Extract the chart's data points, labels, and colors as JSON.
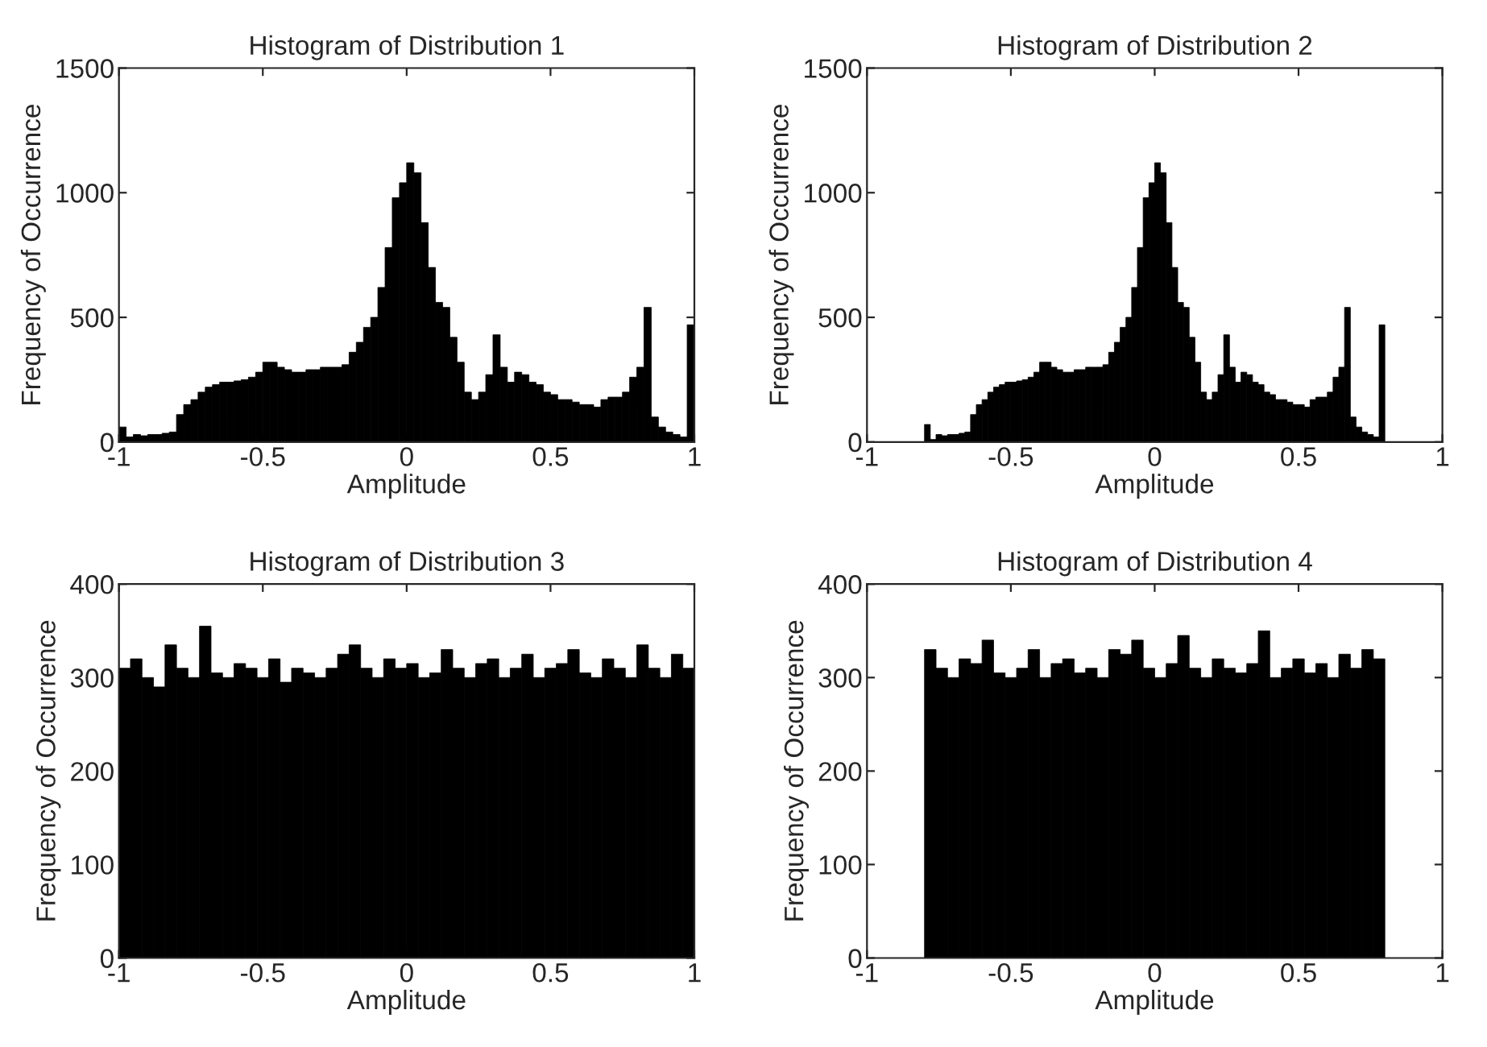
{
  "chart_data": [
    {
      "type": "histogram",
      "title": "Histogram of Distribution 1",
      "xlabel": "Amplitude",
      "ylabel": "Frequency of Occurrence",
      "color": "#000000",
      "xlim": [
        -1,
        1
      ],
      "xticks": [
        -1,
        -0.5,
        0,
        0.5,
        1
      ],
      "ylim": [
        0,
        1500
      ],
      "yticks": [
        0,
        500,
        1000,
        1500
      ],
      "grid": false,
      "bins": [
        -1,
        -0.975,
        -0.95,
        -0.925,
        -0.9,
        -0.875,
        -0.85,
        -0.825,
        -0.8,
        -0.775,
        -0.75,
        -0.725,
        -0.7,
        -0.675,
        -0.65,
        -0.625,
        -0.6,
        -0.575,
        -0.55,
        -0.525,
        -0.5,
        -0.475,
        -0.45,
        -0.425,
        -0.4,
        -0.375,
        -0.35,
        -0.325,
        -0.3,
        -0.275,
        -0.25,
        -0.225,
        -0.2,
        -0.175,
        -0.15,
        -0.125,
        -0.1,
        -0.075,
        -0.05,
        -0.025,
        0,
        0.025,
        0.05,
        0.075,
        0.1,
        0.125,
        0.15,
        0.175,
        0.2,
        0.225,
        0.25,
        0.275,
        0.3,
        0.325,
        0.35,
        0.375,
        0.4,
        0.425,
        0.45,
        0.475,
        0.5,
        0.525,
        0.55,
        0.575,
        0.6,
        0.625,
        0.65,
        0.675,
        0.7,
        0.725,
        0.75,
        0.775,
        0.8,
        0.825,
        0.85,
        0.875,
        0.9,
        0.925,
        0.95,
        0.975,
        1
      ],
      "values": [
        60,
        20,
        30,
        25,
        30,
        30,
        35,
        40,
        110,
        150,
        170,
        200,
        220,
        230,
        240,
        240,
        245,
        250,
        260,
        280,
        320,
        320,
        300,
        290,
        280,
        280,
        290,
        290,
        300,
        300,
        300,
        310,
        360,
        400,
        460,
        500,
        620,
        780,
        980,
        1040,
        1120,
        1080,
        880,
        700,
        560,
        540,
        420,
        320,
        200,
        170,
        200,
        270,
        430,
        300,
        240,
        280,
        270,
        240,
        230,
        200,
        190,
        170,
        170,
        160,
        150,
        150,
        140,
        170,
        180,
        180,
        200,
        260,
        300,
        540,
        100,
        60,
        40,
        30,
        20,
        470
      ]
    },
    {
      "type": "histogram",
      "title": "Histogram of Distribution 2",
      "xlabel": "Amplitude",
      "ylabel": "Frequency of Occurrence",
      "color": "#000000",
      "xlim": [
        -1,
        1
      ],
      "xticks": [
        -1,
        -0.5,
        0,
        0.5,
        1
      ],
      "ylim": [
        0,
        1500
      ],
      "yticks": [
        0,
        500,
        1000,
        1500
      ],
      "grid": false,
      "bins": [
        -0.8,
        -0.78,
        -0.76,
        -0.74,
        -0.72,
        -0.7,
        -0.68,
        -0.66,
        -0.64,
        -0.62,
        -0.6,
        -0.58,
        -0.56,
        -0.54,
        -0.52,
        -0.5,
        -0.48,
        -0.46,
        -0.44,
        -0.42,
        -0.4,
        -0.38,
        -0.36,
        -0.34,
        -0.32,
        -0.3,
        -0.28,
        -0.26,
        -0.24,
        -0.22,
        -0.2,
        -0.18,
        -0.16,
        -0.14,
        -0.12,
        -0.1,
        -0.08,
        -0.06,
        -0.04,
        -0.02,
        0,
        0.02,
        0.04,
        0.06,
        0.08,
        0.1,
        0.12,
        0.14,
        0.16,
        0.18,
        0.2,
        0.22,
        0.24,
        0.26,
        0.28,
        0.3,
        0.32,
        0.34,
        0.36,
        0.38,
        0.4,
        0.42,
        0.44,
        0.46,
        0.48,
        0.5,
        0.52,
        0.54,
        0.56,
        0.58,
        0.6,
        0.62,
        0.64,
        0.66,
        0.68,
        0.7,
        0.72,
        0.74,
        0.76,
        0.78,
        0.8
      ],
      "values": [
        70,
        10,
        30,
        25,
        30,
        30,
        35,
        40,
        110,
        150,
        170,
        200,
        220,
        230,
        240,
        240,
        245,
        250,
        260,
        280,
        320,
        320,
        300,
        290,
        280,
        280,
        290,
        290,
        300,
        300,
        300,
        310,
        360,
        400,
        460,
        500,
        620,
        780,
        980,
        1040,
        1120,
        1080,
        880,
        700,
        560,
        540,
        420,
        320,
        200,
        170,
        200,
        270,
        430,
        300,
        240,
        280,
        270,
        240,
        230,
        200,
        190,
        170,
        170,
        160,
        150,
        150,
        140,
        170,
        180,
        180,
        200,
        260,
        300,
        540,
        100,
        60,
        40,
        30,
        20,
        470
      ]
    },
    {
      "type": "histogram",
      "title": "Histogram of Distribution 3",
      "xlabel": "Amplitude",
      "ylabel": "Frequency of Occurrence",
      "color": "#000000",
      "xlim": [
        -1,
        1
      ],
      "xticks": [
        -1,
        -0.5,
        0,
        0.5,
        1
      ],
      "ylim": [
        0,
        400
      ],
      "yticks": [
        0,
        100,
        200,
        300,
        400
      ],
      "grid": false,
      "bins": [
        -1,
        -0.96,
        -0.92,
        -0.88,
        -0.84,
        -0.8,
        -0.76,
        -0.72,
        -0.68,
        -0.64,
        -0.6,
        -0.56,
        -0.52,
        -0.48,
        -0.44,
        -0.4,
        -0.36,
        -0.32,
        -0.28,
        -0.24,
        -0.2,
        -0.16,
        -0.12,
        -0.08,
        -0.04,
        0,
        0.04,
        0.08,
        0.12,
        0.16,
        0.2,
        0.24,
        0.28,
        0.32,
        0.36,
        0.4,
        0.44,
        0.48,
        0.52,
        0.56,
        0.6,
        0.64,
        0.68,
        0.72,
        0.76,
        0.8,
        0.84,
        0.88,
        0.92,
        0.96,
        1
      ],
      "values": [
        310,
        320,
        300,
        290,
        335,
        310,
        300,
        355,
        305,
        300,
        315,
        310,
        300,
        320,
        295,
        310,
        305,
        300,
        310,
        325,
        335,
        310,
        300,
        320,
        310,
        315,
        300,
        305,
        330,
        310,
        300,
        315,
        320,
        300,
        310,
        325,
        300,
        310,
        315,
        330,
        305,
        300,
        320,
        310,
        300,
        335,
        310,
        300,
        325,
        310
      ]
    },
    {
      "type": "histogram",
      "title": "Histogram of Distribution 4",
      "xlabel": "Amplitude",
      "ylabel": "Frequency of Occurrence",
      "color": "#000000",
      "xlim": [
        -1,
        1
      ],
      "xticks": [
        -1,
        -0.5,
        0,
        0.5,
        1
      ],
      "ylim": [
        0,
        400
      ],
      "yticks": [
        0,
        100,
        200,
        300,
        400
      ],
      "grid": false,
      "bins": [
        -0.8,
        -0.76,
        -0.72,
        -0.68,
        -0.64,
        -0.6,
        -0.56,
        -0.52,
        -0.48,
        -0.44,
        -0.4,
        -0.36,
        -0.32,
        -0.28,
        -0.24,
        -0.2,
        -0.16,
        -0.12,
        -0.08,
        -0.04,
        0,
        0.04,
        0.08,
        0.12,
        0.16,
        0.2,
        0.24,
        0.28,
        0.32,
        0.36,
        0.4,
        0.44,
        0.48,
        0.52,
        0.56,
        0.6,
        0.64,
        0.68,
        0.72,
        0.76,
        0.8
      ],
      "values": [
        330,
        310,
        300,
        320,
        315,
        340,
        305,
        300,
        310,
        330,
        300,
        315,
        320,
        305,
        310,
        300,
        330,
        325,
        340,
        310,
        300,
        315,
        345,
        310,
        300,
        320,
        310,
        305,
        315,
        350,
        300,
        310,
        320,
        305,
        315,
        300,
        325,
        310,
        330,
        320
      ]
    }
  ]
}
